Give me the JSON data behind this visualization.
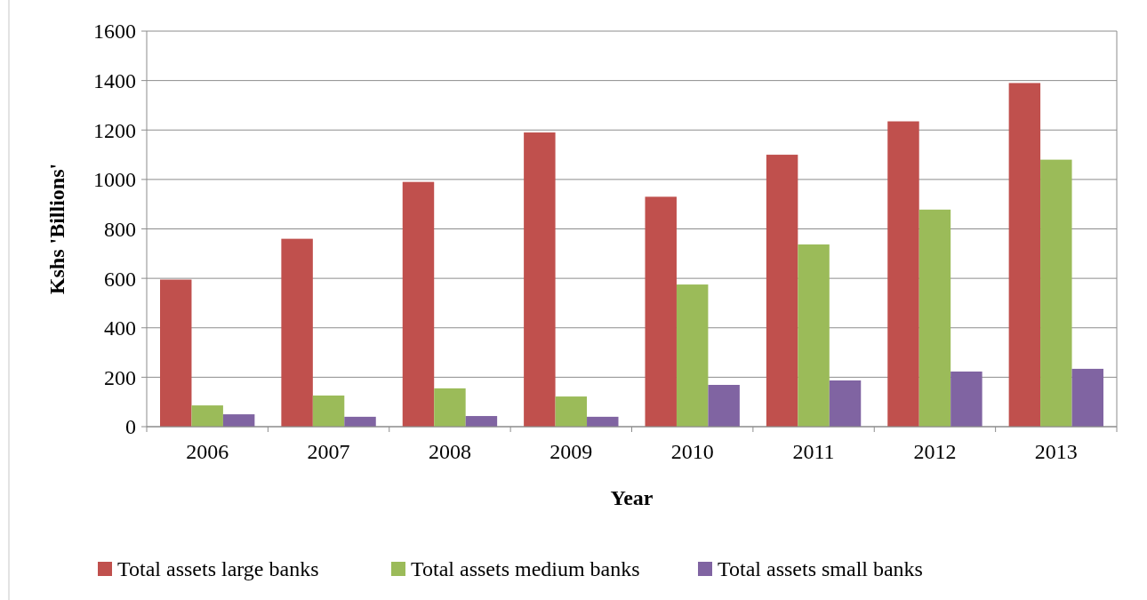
{
  "chart_data": {
    "type": "bar",
    "xlabel": "Year",
    "ylabel": "Kshs 'Billions'",
    "categories": [
      "2006",
      "2007",
      "2008",
      "2009",
      "2010",
      "2011",
      "2012",
      "2013"
    ],
    "series": [
      {
        "name": "Total assets large banks",
        "color": "#c0504d",
        "values": [
          595,
          760,
          990,
          1190,
          930,
          1100,
          1235,
          1390
        ]
      },
      {
        "name": "Total assets medium banks",
        "color": "#9bbb59",
        "values": [
          86,
          126,
          155,
          122,
          575,
          737,
          878,
          1080
        ]
      },
      {
        "name": "Total assets small banks",
        "color": "#8064a2",
        "values": [
          50,
          40,
          43,
          40,
          169,
          187,
          223,
          234
        ]
      }
    ],
    "ylim": [
      0,
      1600
    ],
    "yticks": [
      0,
      200,
      400,
      600,
      800,
      1000,
      1200,
      1400,
      1600
    ],
    "grid": "y",
    "legend": "bottom"
  }
}
